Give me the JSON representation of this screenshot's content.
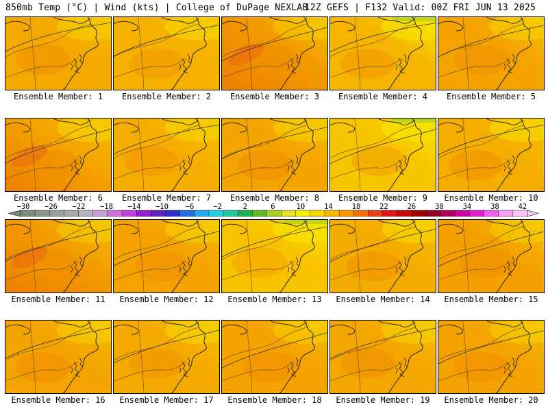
{
  "header": {
    "left": "850mb Temp (°C) | Wind (kts) | College of DuPage NEXLAB",
    "right": "12Z GEFS | F132 Valid: 00Z FRI JUN 13 2025"
  },
  "members": [
    {
      "label": "Ensemble Member: 1",
      "base": "#f5a800",
      "warm_intensity": 0.55,
      "cool_edge": 0.15
    },
    {
      "label": "Ensemble Member: 2",
      "base": "#f5b000",
      "warm_intensity": 0.3,
      "cool_edge": 0.3
    },
    {
      "label": "Ensemble Member: 3",
      "base": "#f39a00",
      "warm_intensity": 0.9,
      "cool_edge": 0.1
    },
    {
      "label": "Ensemble Member: 4",
      "base": "#f5b400",
      "warm_intensity": 0.35,
      "cool_edge": 0.6
    },
    {
      "label": "Ensemble Member: 5",
      "base": "#f4a200",
      "warm_intensity": 0.6,
      "cool_edge": 0.2
    },
    {
      "label": "Ensemble Member: 6",
      "base": "#f4a400",
      "warm_intensity": 0.85,
      "cool_edge": 0.25
    },
    {
      "label": "Ensemble Member: 7",
      "base": "#f5ae00",
      "warm_intensity": 0.45,
      "cool_edge": 0.3
    },
    {
      "label": "Ensemble Member: 8",
      "base": "#f4a400",
      "warm_intensity": 0.7,
      "cool_edge": 0.2
    },
    {
      "label": "Ensemble Member: 9",
      "base": "#f7c400",
      "warm_intensity": 0.25,
      "cool_edge": 0.65
    },
    {
      "label": "Ensemble Member: 10",
      "base": "#f5ae00",
      "warm_intensity": 0.55,
      "cool_edge": 0.45
    },
    {
      "label": "Ensemble Member: 11",
      "base": "#f39c00",
      "warm_intensity": 1.0,
      "cool_edge": 0.1
    },
    {
      "label": "Ensemble Member: 12",
      "base": "#f4a200",
      "warm_intensity": 0.65,
      "cool_edge": 0.2
    },
    {
      "label": "Ensemble Member: 13",
      "base": "#f7c200",
      "warm_intensity": 0.2,
      "cool_edge": 0.7
    },
    {
      "label": "Ensemble Member: 14",
      "base": "#f5ac00",
      "warm_intensity": 0.5,
      "cool_edge": 0.4
    },
    {
      "label": "Ensemble Member: 15",
      "base": "#f4a000",
      "warm_intensity": 0.7,
      "cool_edge": 0.15
    },
    {
      "label": "Ensemble Member: 16",
      "base": "#f4a400",
      "warm_intensity": 0.7,
      "cool_edge": 0.15
    },
    {
      "label": "Ensemble Member: 17",
      "base": "#f5aa00",
      "warm_intensity": 0.5,
      "cool_edge": 0.3
    },
    {
      "label": "Ensemble Member: 18",
      "base": "#f4a200",
      "warm_intensity": 0.75,
      "cool_edge": 0.15
    },
    {
      "label": "Ensemble Member: 19",
      "base": "#f4a600",
      "warm_intensity": 0.65,
      "cool_edge": 0.2
    },
    {
      "label": "Ensemble Member: 20",
      "base": "#f4a200",
      "warm_intensity": 0.75,
      "cool_edge": 0.15
    }
  ],
  "colorbar": {
    "labels": [
      "−30",
      "−26",
      "−22",
      "−18",
      "−14",
      "−10",
      "−6",
      "−2",
      "2",
      "6",
      "10",
      "14",
      "18",
      "22",
      "26",
      "30",
      "34",
      "38",
      "42"
    ],
    "colors": [
      "#7a8c7a",
      "#8c968c",
      "#9aa09a",
      "#a8a8a8",
      "#b4b4c0",
      "#c8a0d8",
      "#d070e0",
      "#c040e0",
      "#9020d0",
      "#6020c0",
      "#3030d0",
      "#2070e0",
      "#20a8f0",
      "#20d0e0",
      "#20c8a0",
      "#20b050",
      "#60b820",
      "#a8d020",
      "#e8e020",
      "#f8f000",
      "#f8d800",
      "#f8b800",
      "#f89800",
      "#f07000",
      "#e84010",
      "#e01818",
      "#c80808",
      "#a00000",
      "#900028",
      "#b00060",
      "#d000a0",
      "#e020d0",
      "#f060f0",
      "#f8a0f8",
      "#f8c8f8"
    ]
  }
}
